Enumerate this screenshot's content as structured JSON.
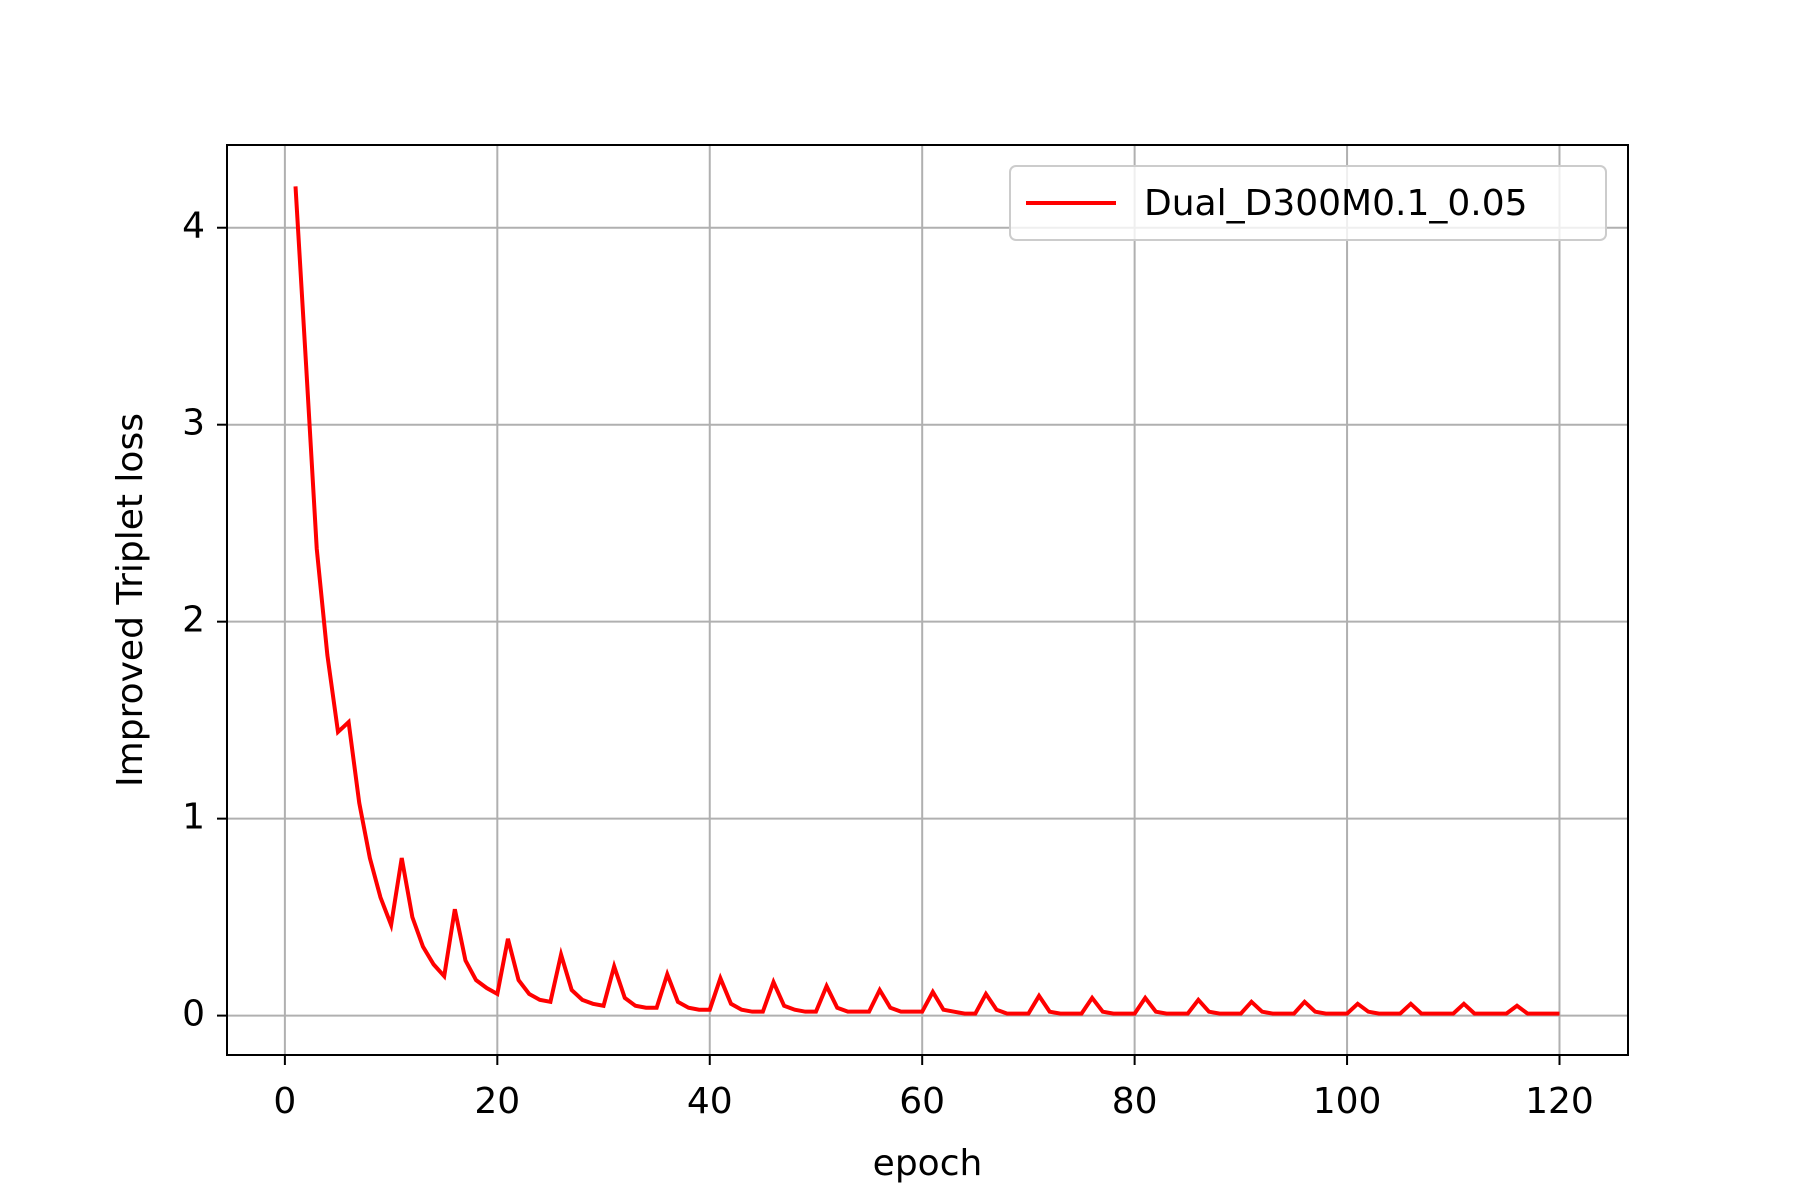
{
  "chart_data": {
    "type": "line",
    "title": "",
    "xlabel": "epoch",
    "ylabel": "Improved Triplet loss",
    "xlim": [
      -5.45,
      126.45
    ],
    "ylim": [
      -0.2,
      4.42
    ],
    "xticks": [
      0,
      20,
      40,
      60,
      80,
      100,
      120
    ],
    "yticks": [
      0,
      1,
      2,
      3,
      4
    ],
    "grid": true,
    "legend_position": "upper right",
    "series": [
      {
        "name": "Dual_D300M0.1_0.05",
        "color": "#ff0000",
        "x": [
          1,
          2,
          3,
          4,
          5,
          6,
          7,
          8,
          9,
          10,
          11,
          12,
          13,
          14,
          15,
          16,
          17,
          18,
          19,
          20,
          21,
          22,
          23,
          24,
          25,
          26,
          27,
          28,
          29,
          30,
          31,
          32,
          33,
          34,
          35,
          36,
          37,
          38,
          39,
          40,
          41,
          42,
          43,
          44,
          45,
          46,
          47,
          48,
          49,
          50,
          51,
          52,
          53,
          54,
          55,
          56,
          57,
          58,
          59,
          60,
          61,
          62,
          63,
          64,
          65,
          66,
          67,
          68,
          69,
          70,
          71,
          72,
          73,
          74,
          75,
          76,
          77,
          78,
          79,
          80,
          81,
          82,
          83,
          84,
          85,
          86,
          87,
          88,
          89,
          90,
          91,
          92,
          93,
          94,
          95,
          96,
          97,
          98,
          99,
          100,
          101,
          102,
          103,
          104,
          105,
          106,
          107,
          108,
          109,
          110,
          111,
          112,
          113,
          114,
          115,
          116,
          117,
          118,
          119,
          120
        ],
        "y": [
          4.21,
          3.3,
          2.37,
          1.83,
          1.44,
          1.49,
          1.08,
          0.8,
          0.6,
          0.46,
          0.8,
          0.5,
          0.35,
          0.26,
          0.2,
          0.54,
          0.28,
          0.18,
          0.14,
          0.11,
          0.39,
          0.18,
          0.11,
          0.08,
          0.07,
          0.31,
          0.13,
          0.08,
          0.06,
          0.05,
          0.25,
          0.09,
          0.05,
          0.04,
          0.04,
          0.21,
          0.07,
          0.04,
          0.03,
          0.03,
          0.19,
          0.06,
          0.03,
          0.02,
          0.02,
          0.17,
          0.05,
          0.03,
          0.02,
          0.02,
          0.15,
          0.04,
          0.02,
          0.02,
          0.02,
          0.13,
          0.04,
          0.02,
          0.02,
          0.02,
          0.12,
          0.03,
          0.02,
          0.01,
          0.01,
          0.11,
          0.03,
          0.01,
          0.01,
          0.01,
          0.1,
          0.02,
          0.01,
          0.01,
          0.01,
          0.09,
          0.02,
          0.01,
          0.01,
          0.01,
          0.09,
          0.02,
          0.01,
          0.01,
          0.01,
          0.08,
          0.02,
          0.01,
          0.01,
          0.01,
          0.07,
          0.02,
          0.01,
          0.01,
          0.01,
          0.07,
          0.02,
          0.01,
          0.01,
          0.01,
          0.06,
          0.02,
          0.01,
          0.01,
          0.01,
          0.06,
          0.01,
          0.01,
          0.01,
          0.01,
          0.06,
          0.01,
          0.01,
          0.01,
          0.01,
          0.05,
          0.01,
          0.01,
          0.01,
          0.01
        ]
      }
    ]
  }
}
